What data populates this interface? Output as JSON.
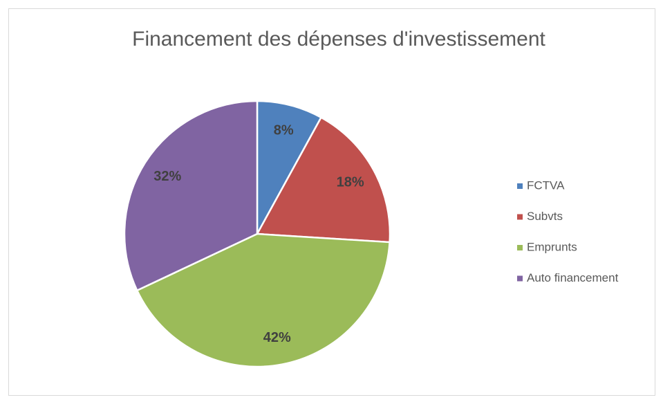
{
  "chart_data": {
    "type": "pie",
    "title": "Financement des dépenses d'investissement",
    "categories": [
      "FCTVA",
      "Subvts",
      "Emprunts",
      "Auto financement"
    ],
    "values": [
      8,
      18,
      42,
      32
    ],
    "value_labels": [
      "8%",
      "18%",
      "42%",
      "32%"
    ],
    "colors": [
      "#4f81bd",
      "#c0504d",
      "#9bbb59",
      "#8064a2"
    ],
    "legend": "right"
  }
}
